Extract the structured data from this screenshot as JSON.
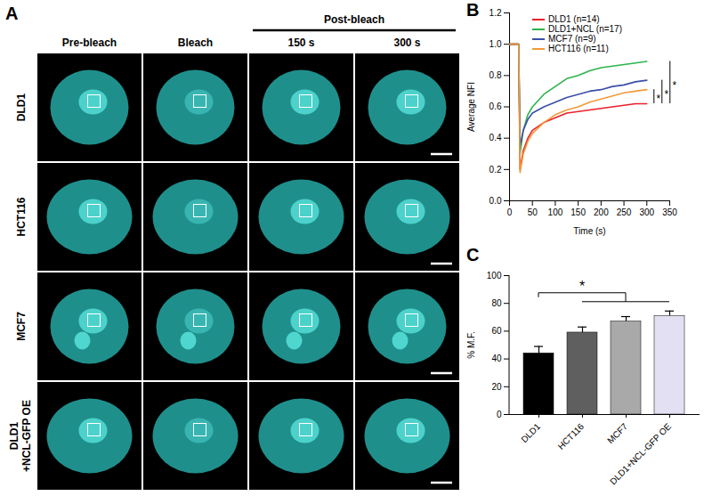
{
  "figure": {
    "panel_a": {
      "panel_label": "A",
      "column_headers": [
        "Pre-bleach",
        "Bleach",
        "150 s",
        "300 s"
      ],
      "group_header": {
        "text": "Post-bleach",
        "columns": [
          "150 s",
          "300 s"
        ]
      },
      "row_labels": [
        [
          "DLD1"
        ],
        [
          "HCT116"
        ],
        [
          "MCF7"
        ],
        [
          "DLD1",
          "+NCL-GFP OE"
        ]
      ]
    }
  },
  "chart_data": [
    {
      "type": "line",
      "panel_label": "B",
      "x_label": "Time (s)",
      "y_label": "Average NFI",
      "x": [
        0,
        5,
        10,
        15,
        20,
        23,
        30,
        40,
        50,
        75,
        100,
        125,
        150,
        175,
        200,
        225,
        250,
        275,
        300
      ],
      "series": [
        {
          "name": "DLD1 (n=14)",
          "color": "#e8202a",
          "values": [
            1,
            1,
            1,
            1,
            1,
            0.2,
            0.32,
            0.4,
            0.45,
            0.5,
            0.53,
            0.56,
            0.57,
            0.58,
            0.59,
            0.6,
            0.61,
            0.62,
            0.62
          ]
        },
        {
          "name": "DLD1+NCL (n=17)",
          "color": "#2db34a",
          "values": [
            1,
            1,
            1,
            1,
            1,
            0.3,
            0.45,
            0.55,
            0.6,
            0.68,
            0.73,
            0.78,
            0.8,
            0.83,
            0.85,
            0.86,
            0.87,
            0.88,
            0.89
          ]
        },
        {
          "name": "MCF7 (n=9)",
          "color": "#3a4fa8",
          "values": [
            1,
            1,
            1,
            1,
            1,
            0.35,
            0.45,
            0.52,
            0.56,
            0.6,
            0.63,
            0.66,
            0.68,
            0.7,
            0.71,
            0.73,
            0.74,
            0.76,
            0.77
          ]
        },
        {
          "name": "HCT116 (n=11)",
          "color": "#f29a3a",
          "values": [
            1,
            1,
            1,
            1,
            1,
            0.18,
            0.3,
            0.38,
            0.43,
            0.5,
            0.55,
            0.58,
            0.6,
            0.63,
            0.65,
            0.67,
            0.69,
            0.7,
            0.71
          ]
        }
      ],
      "xlim": [
        0,
        350
      ],
      "xticks": [
        0,
        50,
        100,
        150,
        200,
        250,
        300,
        350
      ],
      "ylim": [
        0,
        1.2
      ],
      "yticks": [
        {
          "value": 0,
          "label": "0.0"
        },
        0.2,
        0.4,
        0.6,
        0.8,
        {
          "value": 1,
          "label": "1.0"
        },
        1.2
      ],
      "legend": "top-left",
      "grid": false,
      "annotations": [
        {
          "text": "*",
          "between": [
            "DLD1 (n=14)",
            "HCT116 (n=11)"
          ]
        },
        {
          "text": "*",
          "between": [
            "DLD1 (n=14)",
            "MCF7 (n=9)"
          ]
        },
        {
          "text": "*",
          "between": [
            "DLD1 (n=14)",
            "DLD1+NCL (n=17)"
          ]
        }
      ]
    },
    {
      "type": "bar",
      "panel_label": "C",
      "y_label": "% M.F.",
      "categories": [
        "DLD1",
        "HCT116",
        "MCF7",
        "DLD1+NCL-GFP OE"
      ],
      "values": [
        44,
        59,
        67,
        71
      ],
      "errors": [
        5,
        4,
        3.5,
        3.5
      ],
      "colors": [
        "#000000",
        "#5f5f5f",
        "#a9a9a9",
        "#e2e0f2"
      ],
      "ylim": [
        0,
        100
      ],
      "yticks": [
        0,
        20,
        40,
        60,
        80,
        100
      ],
      "grid": false,
      "annotations": [
        {
          "text": "*",
          "from": "DLD1",
          "to": [
            "HCT116",
            "MCF7",
            "DLD1+NCL-GFP OE"
          ]
        }
      ]
    }
  ]
}
